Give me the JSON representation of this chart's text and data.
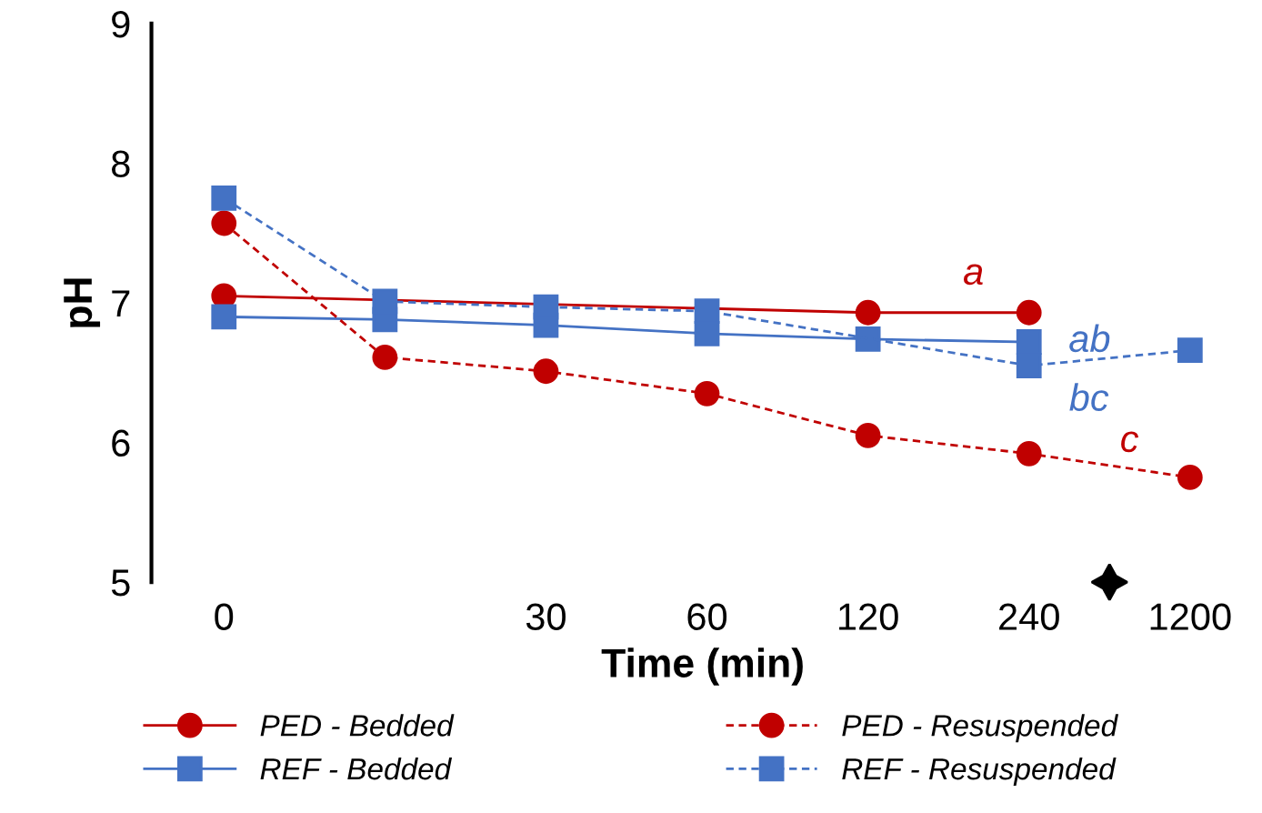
{
  "chart_data": {
    "type": "line",
    "xlabel": "Time (min)",
    "ylabel": "pH",
    "categories": [
      "0",
      null,
      "30",
      "60",
      "120",
      "240",
      "1200"
    ],
    "ylim": [
      5,
      9
    ],
    "yticks": [
      5,
      6,
      7,
      8,
      9
    ],
    "grid": false,
    "legend": "bottom",
    "series": [
      {
        "name": "PED - Bedded",
        "color": "#c00000",
        "marker": "circle",
        "line_style": "solid",
        "values": [
          7.05,
          null,
          null,
          null,
          6.93,
          6.93,
          null
        ]
      },
      {
        "name": "REF - Bedded",
        "color": "#4472c4",
        "marker": "square",
        "line_style": "solid",
        "values": [
          6.9,
          6.88,
          6.84,
          6.78,
          6.74,
          6.72,
          null
        ]
      },
      {
        "name": "PED - Resuspended",
        "color": "#c00000",
        "marker": "circle",
        "line_style": "dashed",
        "values": [
          7.57,
          6.61,
          6.51,
          6.35,
          6.05,
          5.92,
          5.75
        ]
      },
      {
        "name": "REF - Resuspended",
        "color": "#4472c4",
        "marker": "square",
        "line_style": "dashed",
        "values": [
          7.75,
          7.01,
          6.97,
          6.94,
          null,
          6.55,
          6.66
        ]
      }
    ],
    "annotations": [
      "a",
      "ab",
      "bc",
      "c"
    ]
  }
}
